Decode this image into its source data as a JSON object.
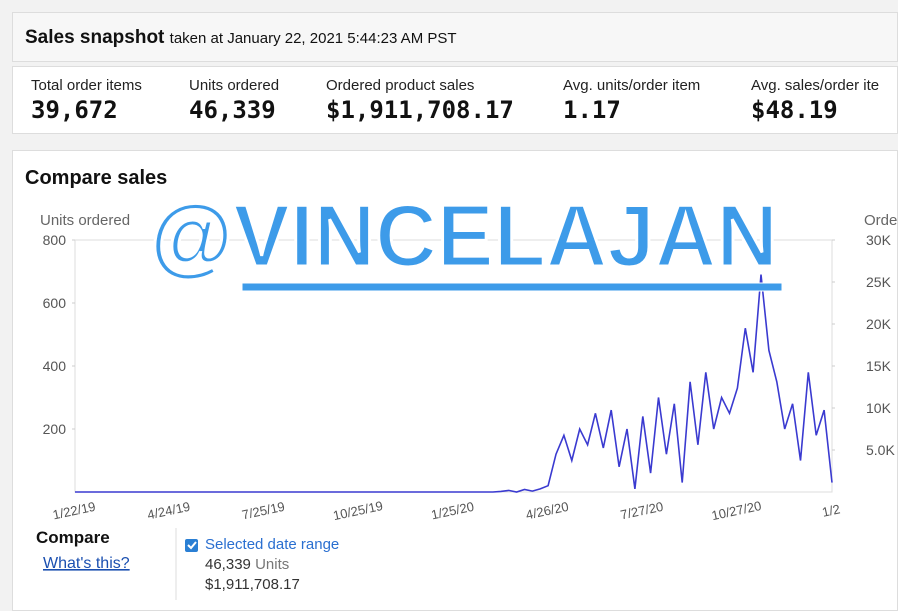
{
  "snapshot": {
    "title": "Sales snapshot",
    "subtitle": "taken at January 22, 2021 5:44:23 AM PST"
  },
  "metrics": [
    {
      "label": "Total order items",
      "value": "39,672"
    },
    {
      "label": "Units ordered",
      "value": "46,339"
    },
    {
      "label": "Ordered product sales",
      "value": "$1,911,708.17"
    },
    {
      "label": "Avg. units/order item",
      "value": "1.17"
    },
    {
      "label": "Avg. sales/order ite",
      "value": "$48.19"
    }
  ],
  "compare": {
    "title": "Compare sales",
    "legend_title": "Compare",
    "help_link": "What's this?",
    "range_label": "Selected date range",
    "range_units": "46,339",
    "units_word": "Units",
    "range_sales": "$1,911,708.17"
  },
  "watermark": "@VINCELAJAN",
  "chart_data": {
    "type": "line",
    "y_label": "Units ordered",
    "y2_label": "Orde",
    "categories": [
      "1/22/19",
      null,
      null,
      null,
      null,
      null,
      null,
      null,
      null,
      null,
      null,
      null,
      "4/24/19",
      null,
      null,
      null,
      null,
      null,
      null,
      null,
      null,
      null,
      null,
      null,
      "7/25/19",
      null,
      null,
      null,
      null,
      null,
      null,
      null,
      null,
      null,
      null,
      null,
      "10/25/19",
      null,
      null,
      null,
      null,
      null,
      null,
      null,
      null,
      null,
      null,
      null,
      "1/25/20",
      null,
      null,
      null,
      null,
      null,
      null,
      null,
      null,
      null,
      null,
      null,
      "4/26/20",
      null,
      null,
      null,
      null,
      null,
      null,
      null,
      null,
      null,
      null,
      null,
      "7/27/20",
      null,
      null,
      null,
      null,
      null,
      null,
      null,
      null,
      null,
      null,
      null,
      "10/27/20",
      null,
      null,
      null,
      null,
      null,
      null,
      null,
      null,
      null,
      null,
      null,
      "1/2"
    ],
    "series": [
      {
        "name": "Units ordered",
        "color": "#3a3ad0",
        "values": [
          0,
          0,
          0,
          0,
          0,
          0,
          0,
          0,
          0,
          0,
          0,
          0,
          0,
          0,
          0,
          0,
          0,
          0,
          0,
          0,
          0,
          0,
          0,
          0,
          0,
          0,
          0,
          0,
          0,
          0,
          0,
          0,
          0,
          0,
          0,
          0,
          0,
          0,
          0,
          0,
          0,
          0,
          0,
          0,
          0,
          0,
          0,
          0,
          0,
          0,
          0,
          0,
          0,
          0,
          2,
          5,
          0,
          8,
          3,
          10,
          20,
          120,
          180,
          100,
          200,
          150,
          250,
          140,
          260,
          80,
          200,
          10,
          240,
          60,
          300,
          120,
          280,
          30,
          350,
          150,
          380,
          200,
          300,
          250,
          330,
          520,
          380,
          690,
          450,
          350,
          200,
          280,
          100,
          380,
          180,
          260,
          30
        ]
      }
    ],
    "ylim": [
      0,
      800
    ],
    "yticks": [
      200,
      400,
      600,
      800
    ],
    "y2lim": [
      0,
      30000
    ],
    "y2ticks": [
      {
        "value": 5000,
        "label": "5.0K"
      },
      {
        "value": 10000,
        "label": "10K"
      },
      {
        "value": 15000,
        "label": "15K"
      },
      {
        "value": 20000,
        "label": "20K"
      },
      {
        "value": 25000,
        "label": "25K"
      },
      {
        "value": 30000,
        "label": "30K"
      }
    ]
  }
}
